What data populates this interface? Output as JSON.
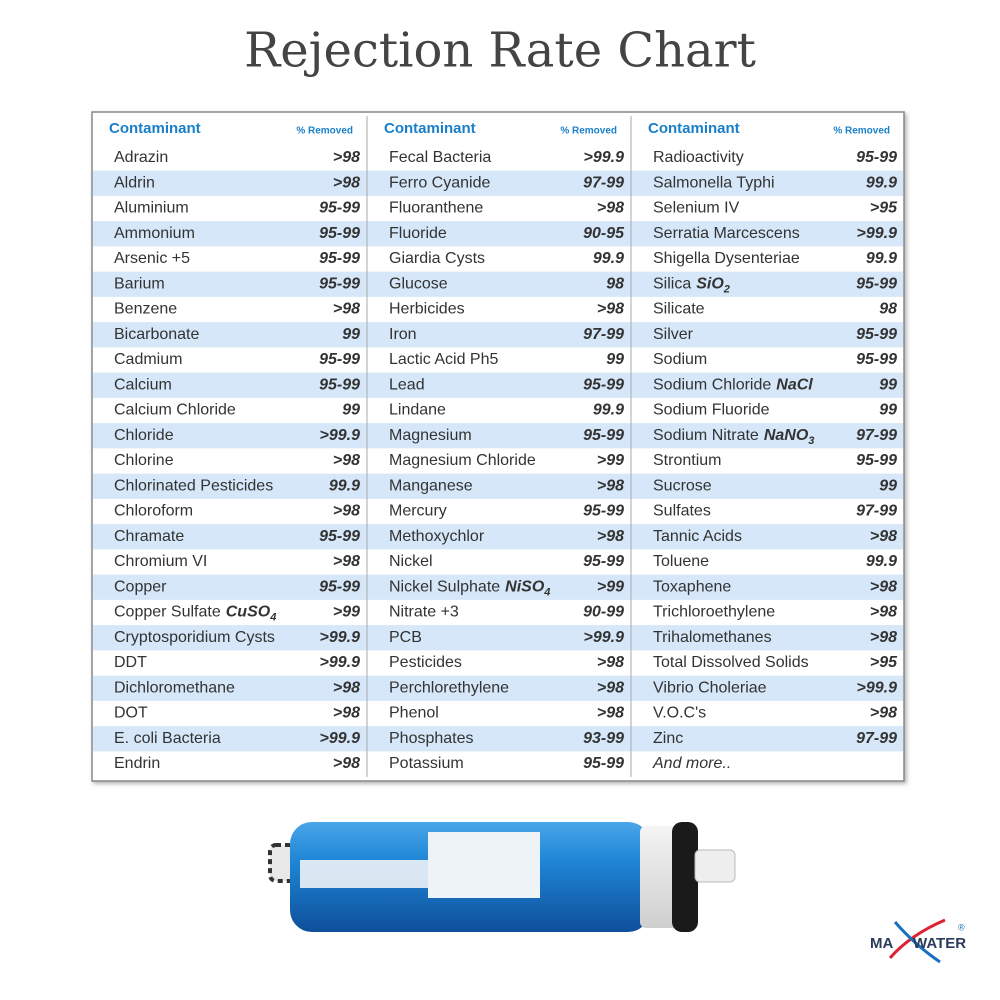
{
  "title": "Rejection Rate Chart",
  "table": {
    "columns": [
      {
        "header": "Contaminant",
        "value_header": "% Removed",
        "rows": [
          {
            "name": "Adrazin",
            "value": ">98"
          },
          {
            "name": "Aldrin",
            "value": ">98"
          },
          {
            "name": "Aluminium",
            "value": "95-99"
          },
          {
            "name": "Ammonium",
            "value": "95-99"
          },
          {
            "name": "Arsenic +5",
            "value": "95-99"
          },
          {
            "name": "Barium",
            "value": "95-99"
          },
          {
            "name": "Benzene",
            "value": ">98"
          },
          {
            "name": "Bicarbonate",
            "value": "99"
          },
          {
            "name": "Cadmium",
            "value": "95-99"
          },
          {
            "name": "Calcium",
            "value": "95-99"
          },
          {
            "name": "Calcium Chloride",
            "value": "99"
          },
          {
            "name": "Chloride",
            "value": ">99.9"
          },
          {
            "name": "Chlorine",
            "value": ">98"
          },
          {
            "name": "Chlorinated Pesticides",
            "value": "99.9"
          },
          {
            "name": "Chloroform",
            "value": ">98"
          },
          {
            "name": "Chramate",
            "value": "95-99"
          },
          {
            "name": "Chromium VI",
            "value": ">98"
          },
          {
            "name": "Copper",
            "value": "95-99"
          },
          {
            "name": "Copper Sulfate",
            "formula": "CuSO",
            "formula_sub": "4",
            "value": ">99"
          },
          {
            "name": "Cryptosporidium Cysts",
            "value": ">99.9"
          },
          {
            "name": "DDT",
            "value": ">99.9"
          },
          {
            "name": "Dichloromethane",
            "value": ">98"
          },
          {
            "name": "DOT",
            "value": ">98"
          },
          {
            "name": "E. coli Bacteria",
            "value": ">99.9"
          },
          {
            "name": "Endrin",
            "value": ">98"
          }
        ]
      },
      {
        "header": "Contaminant",
        "value_header": "% Removed",
        "rows": [
          {
            "name": "Fecal Bacteria",
            "value": ">99.9"
          },
          {
            "name": "Ferro Cyanide",
            "value": "97-99"
          },
          {
            "name": "Fluoranthene",
            "value": ">98"
          },
          {
            "name": "Fluoride",
            "value": "90-95"
          },
          {
            "name": "Giardia Cysts",
            "value": "99.9"
          },
          {
            "name": "Glucose",
            "value": "98"
          },
          {
            "name": "Herbicides",
            "value": ">98"
          },
          {
            "name": "Iron",
            "value": "97-99"
          },
          {
            "name": "Lactic Acid Ph5",
            "value": "99"
          },
          {
            "name": "Lead",
            "value": "95-99"
          },
          {
            "name": "Lindane",
            "value": "99.9"
          },
          {
            "name": "Magnesium",
            "value": "95-99"
          },
          {
            "name": "Magnesium Chloride",
            "value": ">99"
          },
          {
            "name": "Manganese",
            "value": ">98"
          },
          {
            "name": "Mercury",
            "value": "95-99"
          },
          {
            "name": "Methoxychlor",
            "value": ">98"
          },
          {
            "name": "Nickel",
            "value": "95-99"
          },
          {
            "name": "Nickel Sulphate",
            "formula": "NiSO",
            "formula_sub": "4",
            "value": ">99"
          },
          {
            "name": "Nitrate +3",
            "value": "90-99"
          },
          {
            "name": "PCB",
            "value": ">99.9"
          },
          {
            "name": "Pesticides",
            "value": ">98"
          },
          {
            "name": "Perchlorethylene",
            "value": ">98"
          },
          {
            "name": "Phenol",
            "value": ">98"
          },
          {
            "name": "Phosphates",
            "value": "93-99"
          },
          {
            "name": "Potassium",
            "value": "95-99"
          }
        ]
      },
      {
        "header": "Contaminant",
        "value_header": "% Removed",
        "rows": [
          {
            "name": "Radioactivity",
            "value": "95-99"
          },
          {
            "name": "Salmonella Typhi",
            "value": "99.9"
          },
          {
            "name": "Selenium IV",
            "value": ">95"
          },
          {
            "name": "Serratia Marcescens",
            "value": ">99.9"
          },
          {
            "name": "Shigella Dysenteriae",
            "value": "99.9"
          },
          {
            "name": "Silica",
            "formula": "SiO",
            "formula_sub": "2",
            "value": "95-99"
          },
          {
            "name": "Silicate",
            "value": "98"
          },
          {
            "name": "Silver",
            "value": "95-99"
          },
          {
            "name": "Sodium",
            "value": "95-99"
          },
          {
            "name": "Sodium Chloride",
            "formula": "NaCl",
            "value": "99"
          },
          {
            "name": "Sodium Fluoride",
            "value": "99"
          },
          {
            "name": "Sodium Nitrate",
            "formula": "NaNO",
            "formula_sub": "3",
            "value": "97-99"
          },
          {
            "name": "Strontium",
            "value": "95-99"
          },
          {
            "name": "Sucrose",
            "value": "99"
          },
          {
            "name": "Sulfates",
            "value": "97-99"
          },
          {
            "name": "Tannic Acids",
            "value": ">98"
          },
          {
            "name": "Toluene",
            "value": "99.9"
          },
          {
            "name": "Toxaphene",
            "value": ">98"
          },
          {
            "name": "Trichloroethylene",
            "value": ">98"
          },
          {
            "name": "Trihalomethanes",
            "value": ">98"
          },
          {
            "name": "Total Dissolved Solids",
            "value": ">95"
          },
          {
            "name": "Vibrio Choleriae",
            "value": ">99.9"
          },
          {
            "name": "V.O.C's",
            "value": ">98"
          },
          {
            "name": "Zinc",
            "value": "97-99"
          },
          {
            "name": "And more.."
          }
        ]
      }
    ]
  },
  "logo": {
    "left": "MA",
    "right": "WATER",
    "mark": "®"
  }
}
